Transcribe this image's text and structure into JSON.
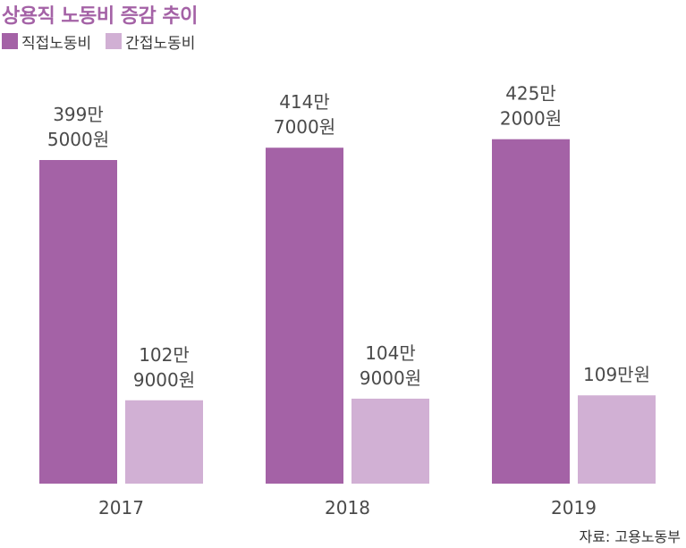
{
  "title": "상용직 노동비 증감 추이",
  "source": "자료: 고용노동부",
  "colors": {
    "title": "#a462a6",
    "direct": "#a462a6",
    "indirect": "#d1b0d4",
    "text": "#4a4a4a"
  },
  "chart_data": {
    "type": "bar",
    "title": "상용직 노동비 증감 추이",
    "xlabel": "",
    "ylabel": "",
    "grid": false,
    "legend_position": "top-left",
    "categories": [
      "2017",
      "2018",
      "2019"
    ],
    "series": [
      {
        "name": "직접노동비",
        "values": [
          3995000,
          4147000,
          4252000
        ],
        "labels": [
          "399만\n5000원",
          "414만\n7000원",
          "425만\n2000원"
        ]
      },
      {
        "name": "간접노동비",
        "values": [
          1029000,
          1049000,
          1090000
        ],
        "labels": [
          "102만\n9000원",
          "104만\n9000원",
          "109만원"
        ]
      }
    ]
  }
}
